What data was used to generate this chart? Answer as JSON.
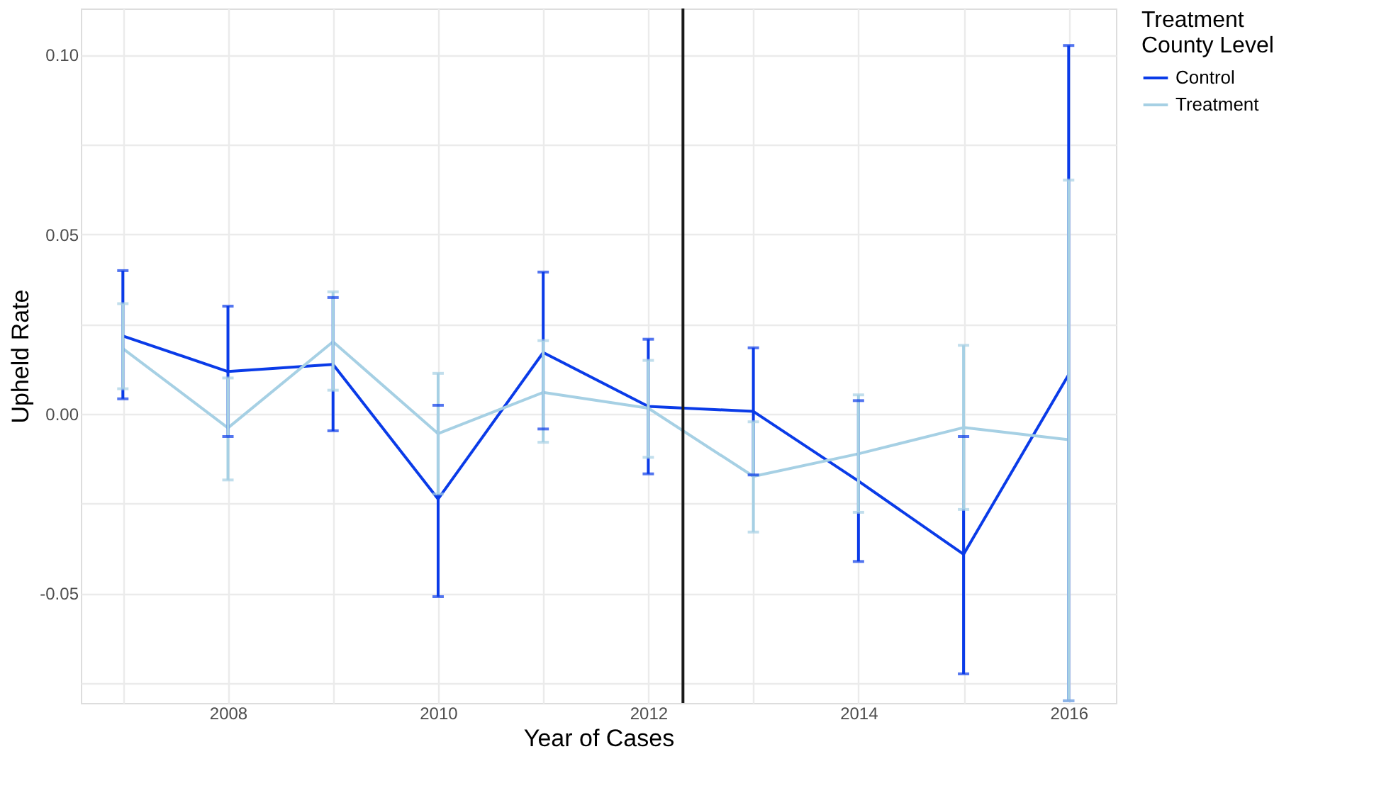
{
  "chart_data": {
    "type": "line",
    "xlabel": "Year of Cases",
    "ylabel": "Upheld Rate",
    "legend_title": "Treatment County Level",
    "legend": "right",
    "grid": true,
    "marker": "none",
    "line_style": "solid",
    "x": [
      2007,
      2008,
      2009,
      2010,
      2011,
      2012,
      2013,
      2014,
      2015,
      2016
    ],
    "xlim": [
      2006.6,
      2016.45
    ],
    "ylim": [
      -0.0805,
      0.1129
    ],
    "xticks": [
      {
        "value": 2007,
        "label": null
      },
      2008,
      {
        "value": 2009,
        "label": null
      },
      2010,
      {
        "value": 2011,
        "label": null
      },
      2012,
      {
        "value": 2013,
        "label": null
      },
      2014,
      {
        "value": 2015,
        "label": null
      },
      2016
    ],
    "yticks": [
      {
        "value": -0.075,
        "label": null
      },
      {
        "value": -0.05,
        "label": "-0.05"
      },
      {
        "value": -0.025,
        "label": null
      },
      {
        "value": 0,
        "label": "0.00"
      },
      {
        "value": 0.025,
        "label": null
      },
      {
        "value": 0.05,
        "label": "0.05"
      },
      {
        "value": 0.075,
        "label": null
      },
      {
        "value": 0.1,
        "label": "0.10"
      }
    ],
    "series": [
      {
        "name": "Control",
        "color": "#0a3be8",
        "values": [
          0.0217,
          0.0118,
          0.0138,
          -0.0237,
          0.0171,
          0.0021,
          0.0007,
          -0.0187,
          -0.0391,
          0.0109
        ],
        "errors": [
          [
            0.0042,
            0.0399
          ],
          [
            -0.0063,
            0.03
          ],
          [
            -0.0047,
            0.0324
          ],
          [
            -0.0509,
            0.0024
          ],
          [
            -0.0042,
            0.0395
          ],
          [
            -0.0167,
            0.0208
          ],
          [
            -0.017,
            0.0184
          ],
          [
            -0.0411,
            0.0037
          ],
          [
            -0.0724,
            -0.0063
          ],
          [
            -0.0799,
            0.1026
          ]
        ]
      },
      {
        "name": "Treatment",
        "color": "#a6d0e4",
        "values": [
          0.0182,
          -0.0039,
          0.0201,
          -0.0055,
          0.006,
          0.0016,
          -0.0174,
          -0.0111,
          -0.0038,
          -0.0072
        ],
        "errors": [
          [
            0.007,
            0.0307
          ],
          [
            -0.0184,
            0.01
          ],
          [
            0.0066,
            0.034
          ],
          [
            -0.0223,
            0.0113
          ],
          [
            -0.0079,
            0.0204
          ],
          [
            -0.0121,
            0.0149
          ],
          [
            -0.0329,
            -0.0022
          ],
          [
            -0.0274,
            0.0053
          ],
          [
            -0.0266,
            0.0191
          ],
          [
            -0.0799,
            0.0651
          ]
        ]
      }
    ],
    "ref_lines": [
      {
        "axis": "x",
        "value": 2012.33,
        "color": "#1a1a1a"
      }
    ]
  }
}
